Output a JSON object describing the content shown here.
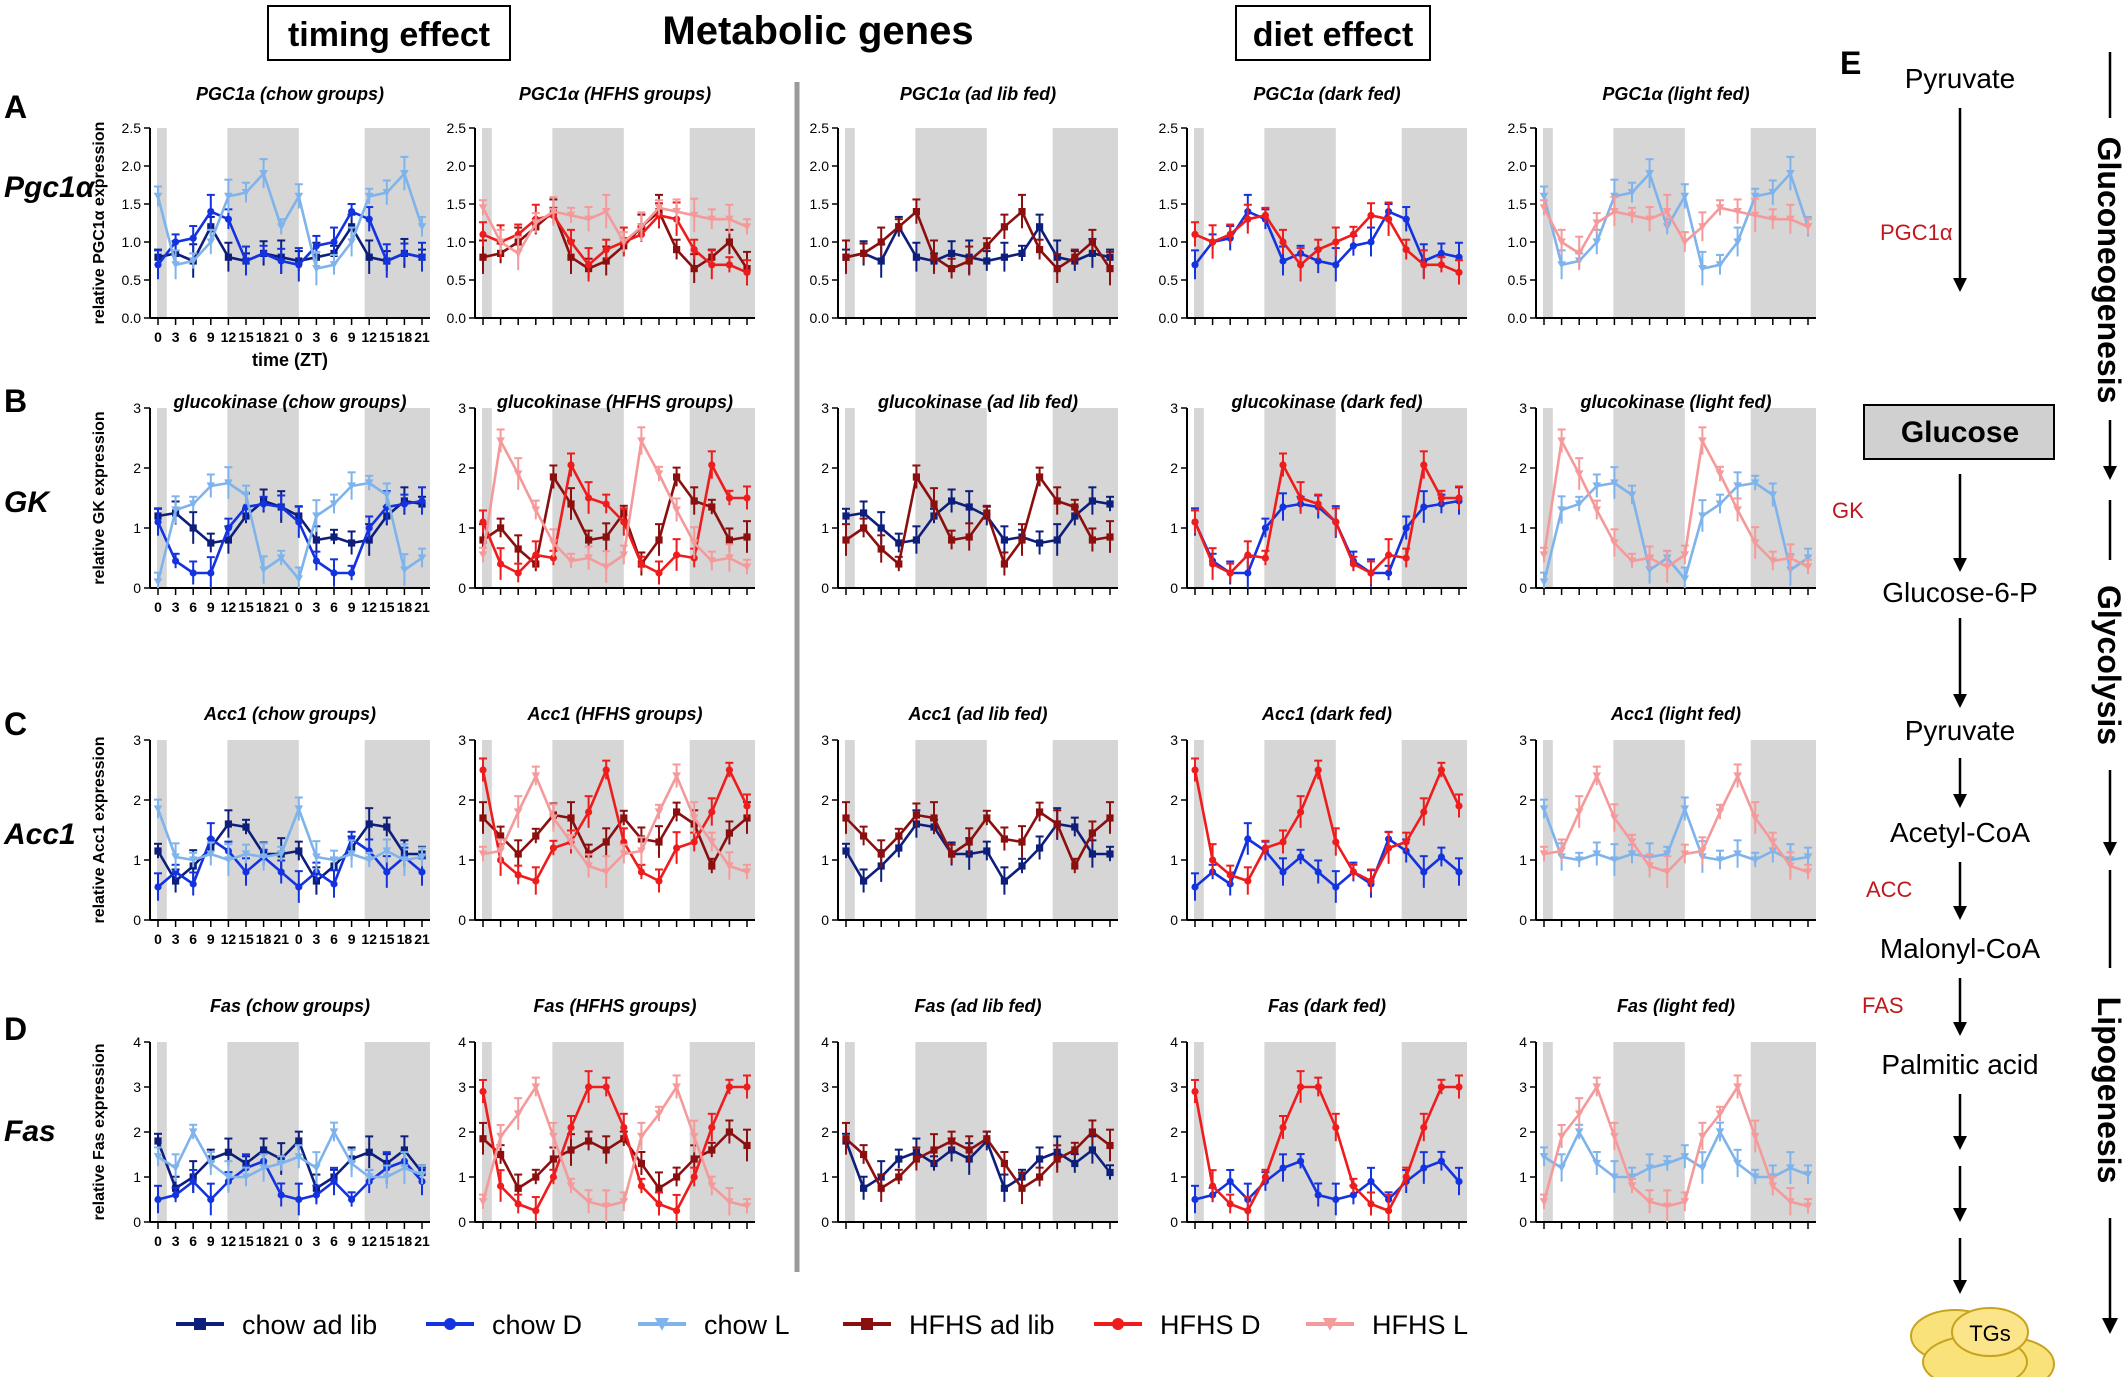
{
  "header": {
    "left_box": "timing effect",
    "main_title": "Metabolic genes",
    "right_box": "diet effect"
  },
  "rows": [
    {
      "letter": "A",
      "gene_label": "Pgc1α",
      "ylabel": "relative PGC1α expression",
      "ylim": [
        0,
        2.5
      ],
      "yticks": [
        "0.0",
        "0.5",
        "1.0",
        "1.5",
        "2.0",
        "2.5"
      ],
      "titles": [
        "PGC1a (chow groups)",
        "PGC1α (HFHS groups)",
        "PGC1α (ad lib fed)",
        "PGC1α (dark fed)",
        "PGC1α (light fed)"
      ]
    },
    {
      "letter": "B",
      "gene_label": "GK",
      "ylabel": "relative GK expression",
      "ylim": [
        0,
        3
      ],
      "yticks": [
        "0",
        "1",
        "2",
        "3"
      ],
      "titles": [
        "glucokinase (chow groups)",
        "glucokinase (HFHS groups)",
        "glucokinase (ad lib fed)",
        "glucokinase (dark fed)",
        "glucokinase (light fed)"
      ]
    },
    {
      "letter": "C",
      "gene_label": "Acc1",
      "ylabel": "relative Acc1 expression",
      "ylim": [
        0,
        3
      ],
      "yticks": [
        "0",
        "1",
        "2",
        "3"
      ],
      "titles": [
        "Acc1 (chow groups)",
        "Acc1 (HFHS groups)",
        "Acc1 (ad lib fed)",
        "Acc1 (dark fed)",
        "Acc1 (light fed)"
      ]
    },
    {
      "letter": "D",
      "gene_label": "Fas",
      "ylabel": "relative Fas expression",
      "ylim": [
        0,
        4
      ],
      "yticks": [
        "0",
        "1",
        "2",
        "3",
        "4"
      ],
      "titles": [
        "Fas (chow groups)",
        "Fas (HFHS groups)",
        "Fas (ad lib fed)",
        "Fas (dark fed)",
        "Fas (light fed)"
      ]
    }
  ],
  "x_tick_labels": [
    "0",
    "3",
    "6",
    "9",
    "12",
    "15",
    "18",
    "21",
    "0",
    "3",
    "6",
    "9",
    "12",
    "15",
    "18",
    "21"
  ],
  "x_axis_label": "time (ZT)",
  "legend": [
    {
      "label": "chow ad lib",
      "color": "#0d1f7a",
      "marker": "square"
    },
    {
      "label": "chow D",
      "color": "#1433e0",
      "marker": "circle"
    },
    {
      "label": "chow L",
      "color": "#7fb3ec",
      "marker": "triangle-down"
    },
    {
      "label": "HFHS ad lib",
      "color": "#8b0f0f",
      "marker": "square"
    },
    {
      "label": "HFHS D",
      "color": "#ee1c1c",
      "marker": "circle"
    },
    {
      "label": "HFHS L",
      "color": "#f59a9a",
      "marker": "triangle-down"
    }
  ],
  "chart_data": [
    {
      "type": "line",
      "gene": "Pgc1α",
      "x": [
        0,
        3,
        6,
        9,
        12,
        15,
        18,
        21,
        24,
        27,
        30,
        33,
        36,
        39,
        42,
        45
      ],
      "series": [
        {
          "name": "chow ad lib",
          "values": [
            0.8,
            0.85,
            0.75,
            1.2,
            0.8,
            0.75,
            0.85,
            0.8,
            0.75,
            0.8,
            0.85,
            1.2,
            0.8,
            0.75,
            0.85,
            0.8
          ]
        },
        {
          "name": "chow D",
          "values": [
            0.7,
            1.0,
            1.05,
            1.4,
            1.3,
            0.75,
            0.85,
            0.75,
            0.7,
            0.95,
            1.0,
            1.4,
            1.3,
            0.75,
            0.85,
            0.8
          ]
        },
        {
          "name": "chow L",
          "values": [
            1.6,
            0.7,
            0.75,
            1.0,
            1.6,
            1.65,
            1.9,
            1.2,
            1.6,
            0.65,
            0.7,
            1.0,
            1.6,
            1.65,
            1.9,
            1.2
          ]
        },
        {
          "name": "HFHS ad lib",
          "values": [
            0.8,
            0.85,
            1.0,
            1.2,
            1.4,
            0.8,
            0.65,
            0.75,
            0.95,
            1.2,
            1.4,
            0.9,
            0.65,
            0.8,
            1.0,
            0.65
          ]
        },
        {
          "name": "HFHS D",
          "values": [
            1.1,
            1.0,
            1.1,
            1.3,
            1.35,
            1.0,
            0.7,
            0.9,
            1.0,
            1.1,
            1.35,
            1.3,
            0.9,
            0.7,
            0.7,
            0.6
          ]
        },
        {
          "name": "HFHS L",
          "values": [
            1.45,
            1.0,
            0.85,
            1.25,
            1.4,
            1.35,
            1.3,
            1.4,
            1.0,
            1.2,
            1.45,
            1.4,
            1.35,
            1.3,
            1.3,
            1.2
          ]
        }
      ]
    },
    {
      "type": "line",
      "gene": "GK",
      "x": [
        0,
        3,
        6,
        9,
        12,
        15,
        18,
        21,
        24,
        27,
        30,
        33,
        36,
        39,
        42,
        45
      ],
      "series": [
        {
          "name": "chow ad lib",
          "values": [
            1.2,
            1.25,
            1.0,
            0.75,
            0.8,
            1.2,
            1.45,
            1.35,
            1.2,
            0.8,
            0.85,
            0.75,
            0.8,
            1.2,
            1.45,
            1.4
          ]
        },
        {
          "name": "chow D",
          "values": [
            1.1,
            0.45,
            0.25,
            0.25,
            1.0,
            1.35,
            1.4,
            1.35,
            1.1,
            0.45,
            0.25,
            0.25,
            1.0,
            1.35,
            1.4,
            1.45
          ]
        },
        {
          "name": "chow L",
          "values": [
            0.1,
            1.3,
            1.4,
            1.7,
            1.75,
            1.55,
            0.3,
            0.5,
            0.15,
            1.2,
            1.4,
            1.7,
            1.75,
            1.55,
            0.3,
            0.5
          ]
        },
        {
          "name": "HFHS ad lib",
          "values": [
            0.8,
            1.0,
            0.65,
            0.4,
            1.85,
            1.4,
            0.8,
            0.85,
            1.25,
            0.4,
            0.8,
            1.85,
            1.45,
            1.35,
            0.8,
            0.85
          ]
        },
        {
          "name": "HFHS D",
          "values": [
            1.1,
            0.4,
            0.25,
            0.55,
            0.5,
            2.05,
            1.5,
            1.4,
            1.1,
            0.4,
            0.25,
            0.55,
            0.5,
            2.05,
            1.5,
            1.5
          ]
        },
        {
          "name": "HFHS L",
          "values": [
            0.55,
            2.45,
            1.9,
            1.3,
            0.75,
            0.45,
            0.5,
            0.35,
            0.55,
            2.45,
            1.9,
            1.3,
            0.75,
            0.45,
            0.5,
            0.35
          ]
        }
      ]
    },
    {
      "type": "line",
      "gene": "Acc1",
      "x": [
        0,
        3,
        6,
        9,
        12,
        15,
        18,
        21,
        24,
        27,
        30,
        33,
        36,
        39,
        42,
        45
      ],
      "series": [
        {
          "name": "chow ad lib",
          "values": [
            1.15,
            0.65,
            0.9,
            1.2,
            1.6,
            1.55,
            1.1,
            1.1,
            1.15,
            0.65,
            0.9,
            1.2,
            1.6,
            1.55,
            1.1,
            1.1
          ]
        },
        {
          "name": "chow D",
          "values": [
            0.55,
            0.8,
            0.6,
            1.35,
            1.15,
            0.8,
            1.05,
            0.8,
            0.55,
            0.8,
            0.6,
            1.35,
            1.15,
            0.8,
            1.05,
            0.8
          ]
        },
        {
          "name": "chow L",
          "values": [
            1.85,
            1.05,
            1.0,
            1.1,
            1.0,
            1.1,
            1.05,
            1.1,
            1.85,
            1.05,
            1.0,
            1.1,
            1.0,
            1.15,
            1.0,
            1.05
          ]
        },
        {
          "name": "HFHS ad lib",
          "values": [
            1.7,
            1.4,
            1.1,
            1.4,
            1.75,
            1.7,
            1.1,
            1.3,
            1.7,
            1.35,
            1.3,
            1.8,
            1.6,
            0.9,
            1.45,
            1.7
          ]
        },
        {
          "name": "HFHS D",
          "values": [
            2.5,
            1.0,
            0.75,
            0.65,
            1.2,
            1.3,
            1.8,
            2.5,
            1.3,
            0.8,
            0.65,
            1.2,
            1.3,
            1.8,
            2.5,
            1.9
          ]
        },
        {
          "name": "HFHS L",
          "values": [
            1.1,
            1.15,
            1.8,
            2.4,
            1.7,
            1.3,
            0.9,
            0.8,
            1.1,
            1.15,
            1.8,
            2.4,
            1.7,
            1.3,
            0.9,
            0.8
          ]
        }
      ]
    },
    {
      "type": "line",
      "gene": "Fas",
      "x": [
        0,
        3,
        6,
        9,
        12,
        15,
        18,
        21,
        24,
        27,
        30,
        33,
        36,
        39,
        42,
        45
      ],
      "series": [
        {
          "name": "chow ad lib",
          "values": [
            1.8,
            0.75,
            1.0,
            1.4,
            1.55,
            1.3,
            1.6,
            1.4,
            1.8,
            0.75,
            1.0,
            1.4,
            1.55,
            1.3,
            1.6,
            1.1
          ]
        },
        {
          "name": "chow D",
          "values": [
            0.5,
            0.6,
            0.9,
            0.5,
            0.9,
            1.2,
            1.35,
            0.6,
            0.5,
            0.6,
            0.9,
            0.5,
            0.9,
            1.2,
            1.35,
            0.9
          ]
        },
        {
          "name": "chow L",
          "values": [
            1.45,
            1.2,
            2.0,
            1.3,
            1.0,
            1.0,
            1.2,
            1.3,
            1.45,
            1.2,
            2.0,
            1.3,
            1.0,
            1.0,
            1.2,
            1.05
          ]
        },
        {
          "name": "HFHS ad lib",
          "values": [
            1.85,
            1.5,
            0.75,
            1.0,
            1.4,
            1.6,
            1.8,
            1.6,
            1.85,
            1.3,
            0.75,
            1.0,
            1.4,
            1.6,
            2.0,
            1.7
          ]
        },
        {
          "name": "HFHS D",
          "values": [
            2.9,
            0.8,
            0.4,
            0.25,
            1.0,
            2.1,
            3.0,
            3.0,
            2.1,
            0.8,
            0.4,
            0.25,
            1.0,
            2.1,
            3.0,
            3.0
          ]
        },
        {
          "name": "HFHS L",
          "values": [
            0.45,
            1.9,
            2.4,
            3.0,
            1.9,
            0.8,
            0.45,
            0.35,
            0.45,
            1.9,
            2.4,
            3.0,
            1.9,
            0.8,
            0.45,
            0.35
          ]
        }
      ]
    }
  ],
  "panel_e": {
    "letter": "E",
    "nodes": [
      "Pyruvate",
      "Glucose",
      "Glucose-6-P",
      "Pyruvate",
      "Acetyl-CoA",
      "Malonyl-CoA",
      "Palmitic acid",
      "TGs"
    ],
    "enzymes": [
      "PGC1α",
      "GK",
      "ACC",
      "FAS"
    ],
    "pathways": [
      "Gluconeogenesis",
      "Glycolysis",
      "Lipogenesis"
    ]
  }
}
